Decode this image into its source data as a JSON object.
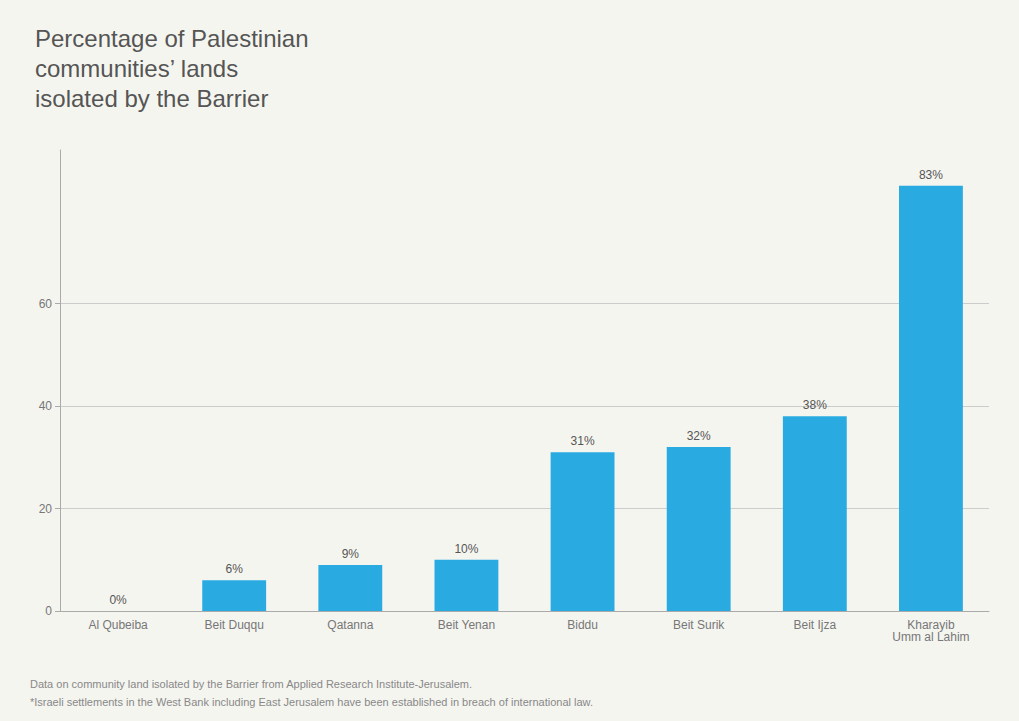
{
  "chart_data": {
    "type": "bar",
    "title": "Percentage of Palestinian\ncommunities’ lands\nisolated by the Barrier",
    "categories": [
      "Al Qubeiba",
      "Beit Duqqu",
      "Qatanna",
      "Beit Yenan",
      "Biddu",
      "Beit Surik",
      "Beit Ijza",
      "Kharayib\nUmm al Lahim"
    ],
    "values": [
      0,
      6,
      9,
      10,
      31,
      32,
      38,
      83
    ],
    "value_labels": [
      "0%",
      "6%",
      "9%",
      "10%",
      "31%",
      "32%",
      "38%",
      "83%"
    ],
    "data_labels": true,
    "color": "#29ABE2",
    "ylim": [
      0,
      90
    ],
    "yticks": [
      0,
      20,
      40,
      60
    ],
    "grid": true,
    "annotations": [
      "Data on community land isolated by the Barrier from Applied Research Institute-Jerusalem.",
      "*Israeli settlements in the West Bank including East Jerusalem have been established in breach of international law."
    ]
  }
}
